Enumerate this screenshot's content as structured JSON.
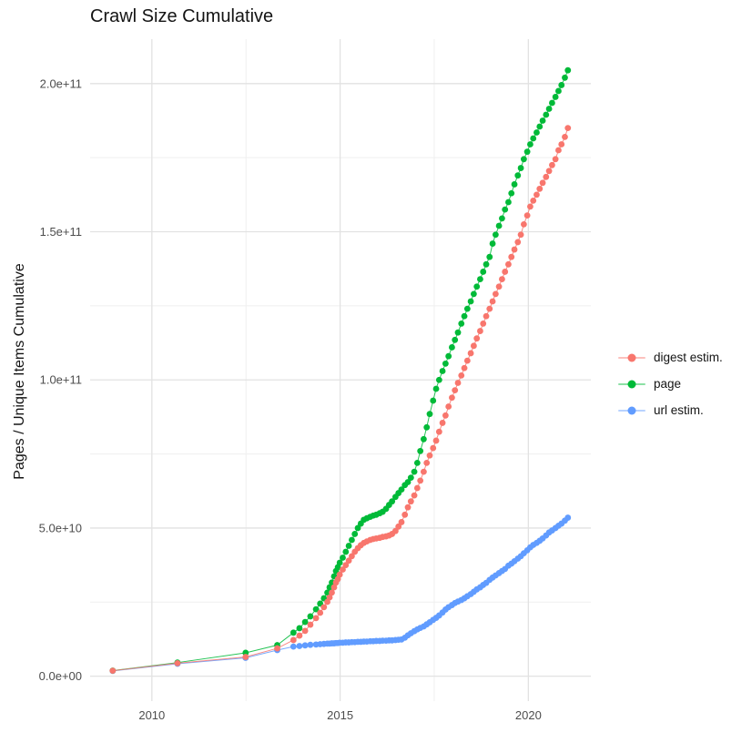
{
  "title": "Crawl Size Cumulative",
  "y_axis_title": "Pages / Unique Items Cumulative",
  "legend": {
    "items": [
      {
        "label": "digest estim.",
        "color": "#F8766D"
      },
      {
        "label": "page",
        "color": "#00BA38"
      },
      {
        "label": "url estim.",
        "color": "#619CFF"
      }
    ]
  },
  "chart_data": {
    "type": "scatter",
    "title": "Crawl Size Cumulative",
    "xlabel": "",
    "ylabel": "Pages / Unique Items Cumulative",
    "y_unit": "items (values listed in billions, 1e9)",
    "grid": true,
    "legend_position": "right",
    "xlim": [
      2008.36,
      2021.66
    ],
    "ylim": [
      -8.4,
      215
    ],
    "x_ticks": {
      "values": [
        2010,
        2015,
        2020
      ],
      "labels": [
        "2010",
        "2015",
        "2020"
      ]
    },
    "y_ticks": {
      "values": [
        0,
        50,
        100,
        150,
        200
      ],
      "labels": [
        "0.0e+00",
        "5.0e+10",
        "1.0e+11",
        "1.5e+11",
        "2.0e+11"
      ]
    },
    "x_minor": [
      2012.5,
      2017.5
    ],
    "y_minor": [
      25,
      75,
      125,
      175
    ],
    "x": [
      2008.96,
      2010.68,
      2012.49,
      2013.33,
      2013.76,
      2013.92,
      2014.07,
      2014.21,
      2014.36,
      2014.47,
      2014.57,
      2014.66,
      2014.72,
      2014.78,
      2014.84,
      2014.89,
      2014.94,
      2014.99,
      2015.07,
      2015.15,
      2015.23,
      2015.31,
      2015.39,
      2015.47,
      2015.55,
      2015.63,
      2015.71,
      2015.8,
      2015.88,
      2015.96,
      2016.05,
      2016.13,
      2016.22,
      2016.3,
      2016.38,
      2016.47,
      2016.55,
      2016.63,
      2016.72,
      2016.8,
      2016.88,
      2016.97,
      2017.05,
      2017.13,
      2017.22,
      2017.3,
      2017.38,
      2017.47,
      2017.55,
      2017.63,
      2017.72,
      2017.8,
      2017.88,
      2017.97,
      2018.05,
      2018.13,
      2018.22,
      2018.3,
      2018.38,
      2018.47,
      2018.55,
      2018.63,
      2018.72,
      2018.8,
      2018.88,
      2018.97,
      2019.05,
      2019.13,
      2019.22,
      2019.3,
      2019.38,
      2019.47,
      2019.55,
      2019.63,
      2019.72,
      2019.8,
      2019.88,
      2019.97,
      2020.05,
      2020.13,
      2020.22,
      2020.3,
      2020.38,
      2020.47,
      2020.55,
      2020.63,
      2020.72,
      2020.8,
      2020.88,
      2020.97,
      2021.05
    ],
    "series": [
      {
        "name": "digest estim.",
        "color": "#F8766D",
        "values_billions": [
          1.85,
          4.4,
          6.5,
          9.4,
          12.2,
          13.7,
          15.3,
          17.4,
          19.6,
          21.4,
          23.3,
          25.1,
          26.6,
          28.2,
          30.0,
          31.6,
          32.8,
          34.3,
          36.0,
          37.5,
          39.0,
          40.5,
          42.0,
          43.2,
          44.2,
          45.0,
          45.5,
          46.0,
          46.3,
          46.5,
          46.7,
          47.0,
          47.2,
          47.5,
          48.0,
          49.0,
          50.5,
          52.0,
          54.5,
          57.0,
          59.0,
          61.0,
          63.5,
          66.0,
          69.0,
          72.0,
          74.5,
          77.0,
          79.5,
          82.5,
          85.5,
          88.0,
          91.0,
          94.0,
          96.5,
          99.0,
          101.5,
          104.0,
          106.5,
          109.0,
          111.5,
          114.0,
          116.5,
          119.0,
          121.5,
          124.0,
          126.5,
          129.0,
          131.5,
          134.0,
          136.5,
          139.0,
          141.5,
          144.0,
          146.5,
          149.0,
          152.5,
          155.5,
          158.5,
          160.5,
          162.5,
          164.5,
          166.5,
          168.5,
          170.5,
          172.5,
          174.5,
          177.5,
          179.5,
          182.0,
          185.0
        ]
      },
      {
        "name": "page",
        "color": "#00BA38",
        "values_billions": [
          1.9,
          4.6,
          7.9,
          10.5,
          14.7,
          16.2,
          18.3,
          20.2,
          22.6,
          24.5,
          26.3,
          28.2,
          30.0,
          31.6,
          33.7,
          35.5,
          36.8,
          38.3,
          40.0,
          42.0,
          44.0,
          46.0,
          48.0,
          50.0,
          51.5,
          52.8,
          53.3,
          53.8,
          54.2,
          54.5,
          55.0,
          55.5,
          56.5,
          57.8,
          59.0,
          60.5,
          61.8,
          63.0,
          64.5,
          65.5,
          67.0,
          69.0,
          72.0,
          76.0,
          80.0,
          84.0,
          88.5,
          93.0,
          97.0,
          100.0,
          103.0,
          105.5,
          108.0,
          111.0,
          113.5,
          116.0,
          119.0,
          121.5,
          124.0,
          126.5,
          129.0,
          131.5,
          134.0,
          136.5,
          139.0,
          141.5,
          146.0,
          149.0,
          152.0,
          154.5,
          157.5,
          160.0,
          163.0,
          166.0,
          169.0,
          171.5,
          174.5,
          177.0,
          179.5,
          181.5,
          183.5,
          185.5,
          187.5,
          189.5,
          191.5,
          193.5,
          195.5,
          197.5,
          199.5,
          202.0,
          204.5
        ]
      },
      {
        "name": "url estim.",
        "color": "#619CFF",
        "values_billions": [
          1.8,
          4.2,
          6.2,
          8.8,
          10.0,
          10.2,
          10.4,
          10.6,
          10.7,
          10.8,
          10.9,
          11.0,
          11.0,
          11.1,
          11.1,
          11.2,
          11.2,
          11.3,
          11.3,
          11.4,
          11.4,
          11.5,
          11.5,
          11.6,
          11.6,
          11.7,
          11.7,
          11.8,
          11.8,
          11.9,
          11.9,
          12.0,
          12.0,
          12.1,
          12.1,
          12.2,
          12.3,
          12.4,
          13.0,
          13.8,
          14.5,
          15.2,
          15.8,
          16.3,
          16.8,
          17.5,
          18.2,
          19.0,
          19.7,
          20.5,
          21.5,
          22.5,
          23.3,
          24.0,
          24.7,
          25.2,
          25.7,
          26.3,
          27.0,
          27.7,
          28.5,
          29.3,
          30.0,
          30.8,
          31.5,
          32.5,
          33.3,
          34.0,
          34.8,
          35.5,
          36.2,
          37.3,
          38.0,
          38.8,
          39.7,
          40.5,
          41.5,
          42.5,
          43.5,
          44.3,
          45.0,
          45.7,
          46.5,
          47.5,
          48.5,
          49.2,
          50.0,
          50.8,
          51.5,
          52.5,
          53.5
        ]
      }
    ]
  },
  "colors": {
    "grid_major": "#E2E2E2",
    "grid_minor": "#EFEFEF",
    "tick_label": "#4D4D4D",
    "text": "#141414",
    "background": "#FFFFFF"
  }
}
